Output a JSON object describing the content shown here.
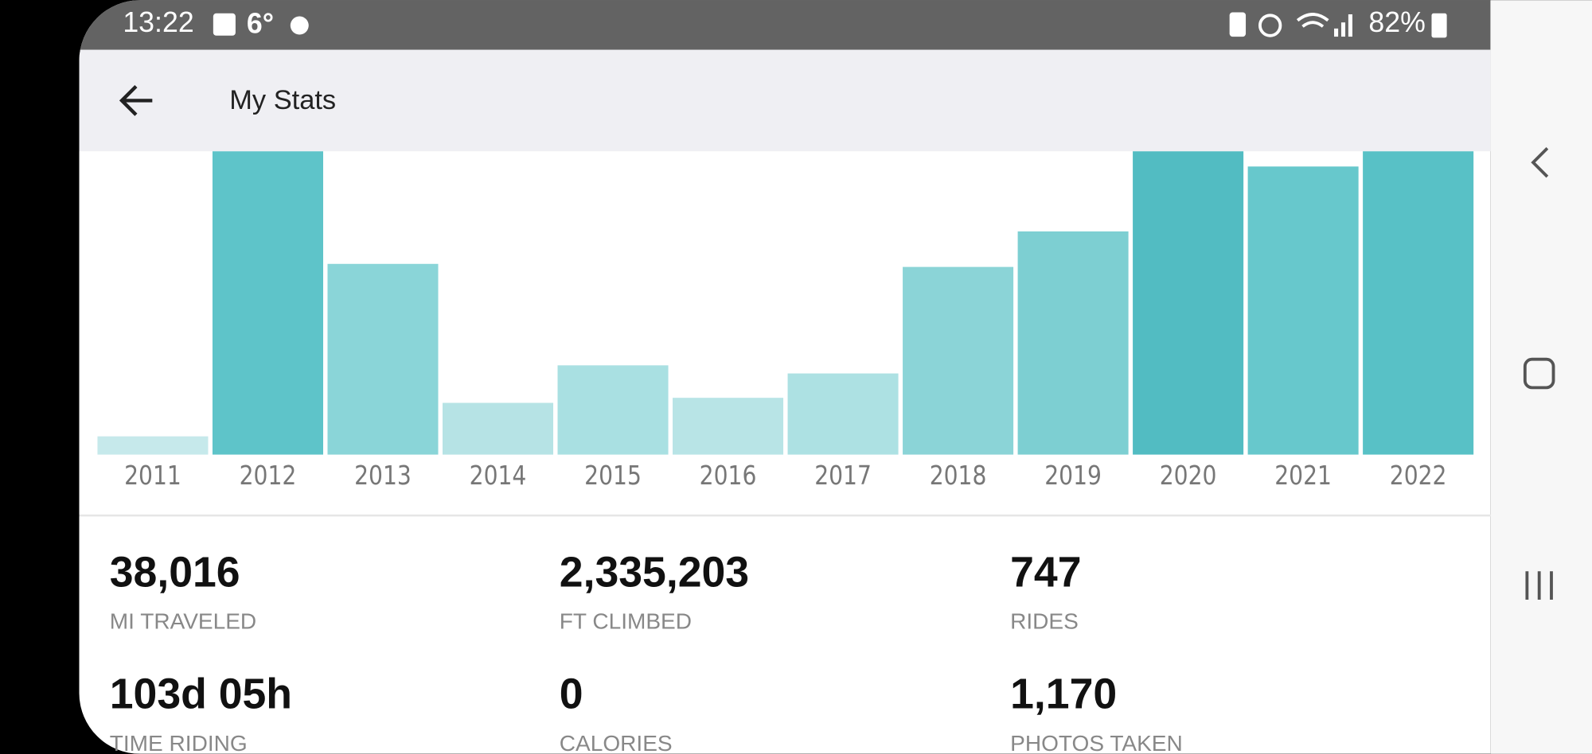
{
  "status_bar": {
    "time": "13:22",
    "temperature": "6°",
    "battery": "82%"
  },
  "app_bar": {
    "title": "My Stats"
  },
  "chart_data": {
    "type": "bar",
    "categories": [
      "2011",
      "2012",
      "2013",
      "2014",
      "2015",
      "2016",
      "2017",
      "2018",
      "2019",
      "2020",
      "2021",
      "2022"
    ],
    "values": [
      18,
      300,
      188,
      51,
      88,
      56,
      80,
      185,
      220,
      300,
      284,
      300
    ],
    "colors": [
      "#c6e9eb",
      "#5ec4c9",
      "#8ad5d8",
      "#b6e3e5",
      "#a9e0e2",
      "#b8e4e6",
      "#ade1e3",
      "#8bd4d7",
      "#7dcfd2",
      "#52bcc2",
      "#67c8cc",
      "#58c1c6"
    ],
    "ylim": [
      0,
      300
    ]
  },
  "stats": [
    {
      "value": "38,016",
      "label": "MI TRAVELED"
    },
    {
      "value": "2,335,203",
      "label": "FT CLIMBED"
    },
    {
      "value": "747",
      "label": "RIDES"
    },
    {
      "value": "103d 05h",
      "label": "TIME RIDING"
    },
    {
      "value": "0",
      "label": "CALORIES"
    },
    {
      "value": "1,170",
      "label": "PHOTOS TAKEN"
    }
  ]
}
